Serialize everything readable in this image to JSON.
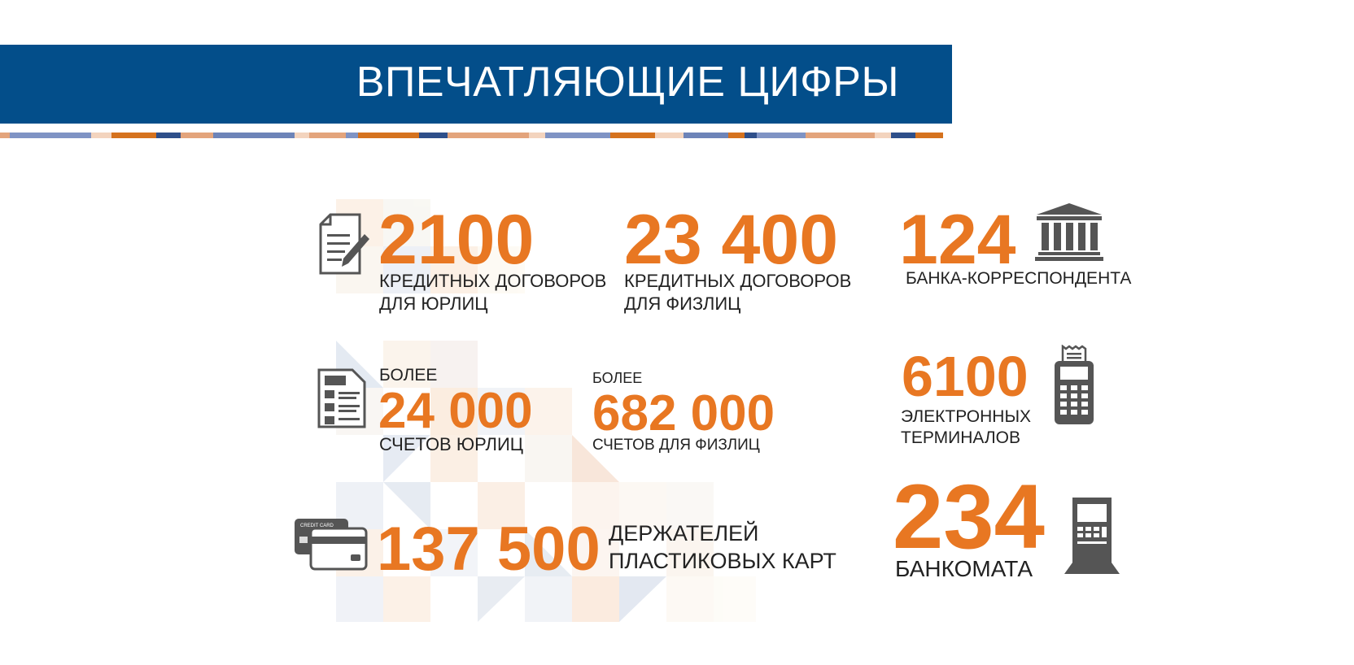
{
  "header": {
    "title": "ВПЕЧАТЛЯЮЩИЕ ЦИФРЫ"
  },
  "colors": {
    "banner": "#034e8a",
    "accent": "#e87722",
    "icon": "#555555",
    "text": "#222222"
  },
  "stats": {
    "loans_legal": {
      "value": "2100",
      "line1": "КРЕДИТНЫХ ДОГОВОРОВ",
      "line2": "ДЛЯ ЮРЛИЦ",
      "icon": "contract-pen-icon"
    },
    "loans_individual": {
      "value": "23 400",
      "line1": "КРЕДИТНЫХ ДОГОВОРОВ",
      "line2": "ДЛЯ ФИЗЛИЦ"
    },
    "correspondent_banks": {
      "value": "124",
      "line1": "БАНКА-КОРРЕСПОНДЕНТА",
      "icon": "bank-building-icon"
    },
    "accounts_legal": {
      "prefix": "БОЛЕЕ",
      "value": "24 000",
      "line1": "СЧЕТОВ ЮРЛИЦ",
      "icon": "document-list-icon"
    },
    "accounts_individual": {
      "prefix": "БОЛЕЕ",
      "value": "682 000",
      "line1": "СЧЕТОВ ДЛЯ ФИЗЛИЦ"
    },
    "terminals": {
      "value": "6100",
      "line1": "ЭЛЕКТРОННЫХ",
      "line2": "ТЕРМИНАЛОВ",
      "icon": "pos-terminal-icon"
    },
    "card_holders": {
      "value": "137 500",
      "line1": "ДЕРЖАТЕЛЕЙ",
      "line2": "ПЛАСТИКОВЫХ КАРТ",
      "icon": "credit-cards-icon",
      "card_label": "CREDIT CARD"
    },
    "atms": {
      "value": "234",
      "line1": "БАНКОМАТА",
      "icon": "atm-icon"
    }
  }
}
